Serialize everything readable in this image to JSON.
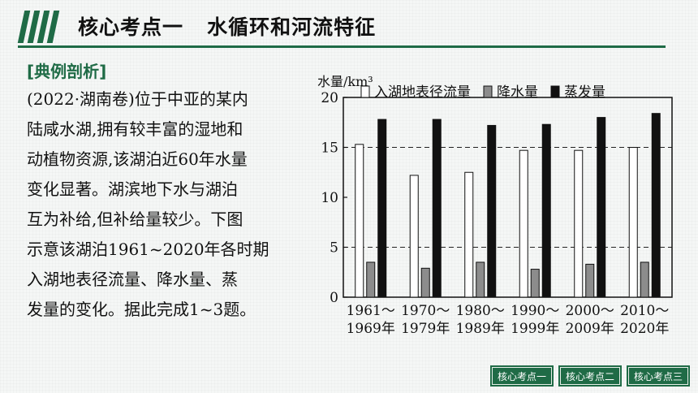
{
  "header": {
    "title": "核心考点一   水循环和河流特征"
  },
  "section": {
    "tag": "[典例剖析]"
  },
  "question": {
    "lines": [
      "(2022·湖南卷)位于中亚的某内",
      "陆咸水湖,拥有较丰富的湿地和",
      "动植物资源,该湖泊近60年水量",
      "变化显著。湖滨地下水与湖泊",
      "互为补给,但补给量较少。下图",
      "示意该湖泊1961~2020年各时期",
      "入湖地表径流量、降水量、蒸",
      "发量的变化。据此完成1~3题。"
    ]
  },
  "chart_data": {
    "type": "bar",
    "ylabel": "水量/km³",
    "ylim": [
      0,
      20
    ],
    "yticks": [
      0,
      5,
      10,
      15,
      20
    ],
    "grid_dashed_at": [
      5,
      15
    ],
    "categories": [
      [
        "1961～",
        "1969年"
      ],
      [
        "1970～",
        "1979年"
      ],
      [
        "1980～",
        "1989年"
      ],
      [
        "1990～",
        "1999年"
      ],
      [
        "2000～",
        "2009年"
      ],
      [
        "2010～",
        "2020年"
      ]
    ],
    "series": [
      {
        "name": "入湖地表径流量",
        "color": "#ffffff",
        "values": [
          15.3,
          12.2,
          12.5,
          14.7,
          14.7,
          15.0
        ]
      },
      {
        "name": "降水量",
        "color": "#8c8c8c",
        "values": [
          3.5,
          2.9,
          3.5,
          2.8,
          3.3,
          3.5
        ]
      },
      {
        "name": "蒸发量",
        "color": "#111111",
        "values": [
          17.8,
          17.8,
          17.2,
          17.3,
          18.0,
          18.4
        ]
      }
    ],
    "legend_position": "top"
  },
  "footer": {
    "nav": [
      "核心考点一",
      "核心考点二",
      "核心考点三"
    ]
  }
}
